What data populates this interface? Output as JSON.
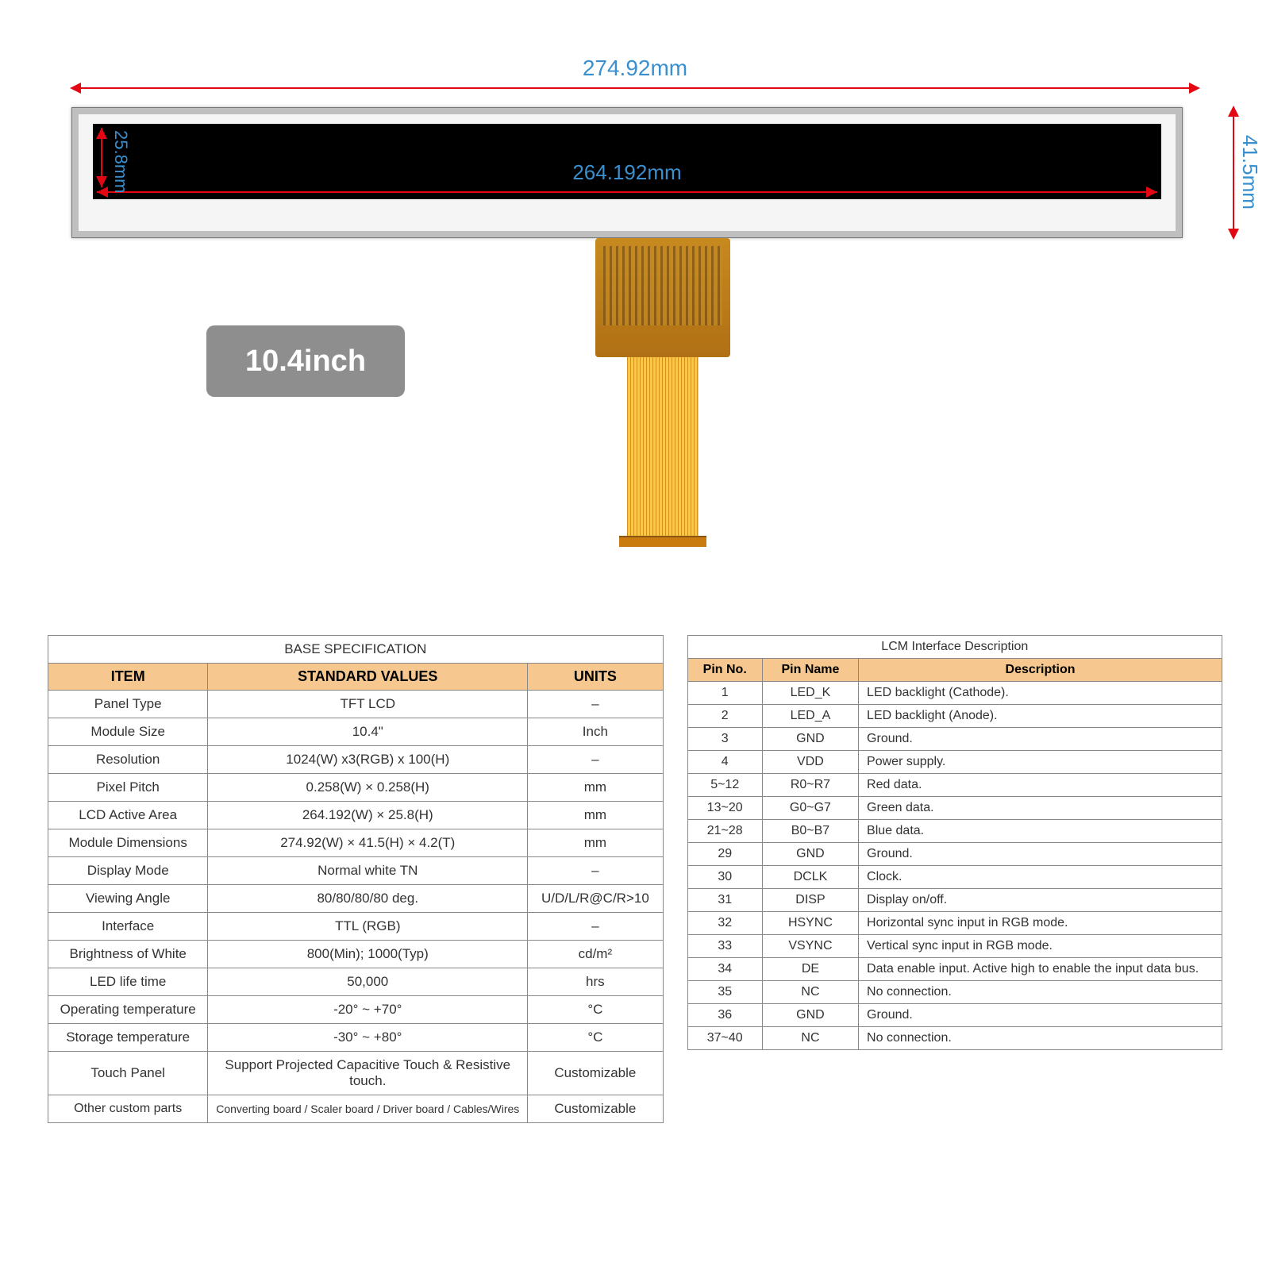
{
  "dimensions": {
    "outer_width": "274.92mm",
    "outer_height": "41.5mm",
    "active_width": "264.192mm",
    "active_height": "25.8mm"
  },
  "badge": "10.4inch",
  "spec_table": {
    "title": "BASE SPECIFICATION",
    "headers": [
      "ITEM",
      "STANDARD VALUES",
      "UNITS"
    ],
    "rows": [
      [
        "Panel Type",
        "TFT LCD",
        "–"
      ],
      [
        "Module Size",
        "10.4\"",
        "Inch"
      ],
      [
        "Resolution",
        "1024(W) x3(RGB) x 100(H)",
        "–"
      ],
      [
        "Pixel Pitch",
        "0.258(W) × 0.258(H)",
        "mm"
      ],
      [
        "LCD Active Area",
        "264.192(W) × 25.8(H)",
        "mm"
      ],
      [
        "Module Dimensions",
        "274.92(W) × 41.5(H) × 4.2(T)",
        "mm"
      ],
      [
        "Display Mode",
        "Normal white TN",
        "–"
      ],
      [
        "Viewing Angle",
        "80/80/80/80 deg.",
        "U/D/L/R@C/R>10"
      ],
      [
        "Interface",
        "TTL  (RGB)",
        "–"
      ],
      [
        "Brightness of White",
        "800(Min);  1000(Typ)",
        "cd/m²"
      ],
      [
        "LED life time",
        "50,000",
        "hrs"
      ],
      [
        "Operating temperature",
        "-20° ~ +70°",
        "°C"
      ],
      [
        "Storage temperature",
        "-30° ~ +80°",
        "°C"
      ],
      [
        "Touch Panel",
        "Support Projected Capacitive Touch & Resistive touch.",
        "Customizable"
      ],
      [
        "Other custom parts",
        "Converting board / Scaler board / Driver board / Cables/Wires",
        "Customizable"
      ]
    ]
  },
  "pin_table": {
    "title": "LCM Interface Description",
    "headers": [
      "Pin No.",
      "Pin Name",
      "Description"
    ],
    "rows": [
      [
        "1",
        "LED_K",
        "LED backlight (Cathode)."
      ],
      [
        "2",
        "LED_A",
        "LED backlight (Anode)."
      ],
      [
        "3",
        "GND",
        "Ground."
      ],
      [
        "4",
        "VDD",
        "Power supply."
      ],
      [
        "5~12",
        "R0~R7",
        "Red data."
      ],
      [
        "13~20",
        "G0~G7",
        "Green data."
      ],
      [
        "21~28",
        "B0~B7",
        "Blue data."
      ],
      [
        "29",
        "GND",
        "Ground."
      ],
      [
        "30",
        "DCLK",
        "Clock."
      ],
      [
        "31",
        "DISP",
        "Display on/off."
      ],
      [
        "32",
        "HSYNC",
        "Horizontal sync input in RGB mode."
      ],
      [
        "33",
        "VSYNC",
        "Vertical sync input in RGB mode."
      ],
      [
        "34",
        "DE",
        "Data enable input. Active high to enable the input data bus."
      ],
      [
        "35",
        "NC",
        "No connection."
      ],
      [
        "36",
        "GND",
        "Ground."
      ],
      [
        "37~40",
        "NC",
        "No connection."
      ]
    ]
  },
  "colors": {
    "arrow": "#e30613",
    "label": "#3a8fcf",
    "header_bg": "#f6c88f",
    "badge_bg": "#8e8e8e"
  }
}
